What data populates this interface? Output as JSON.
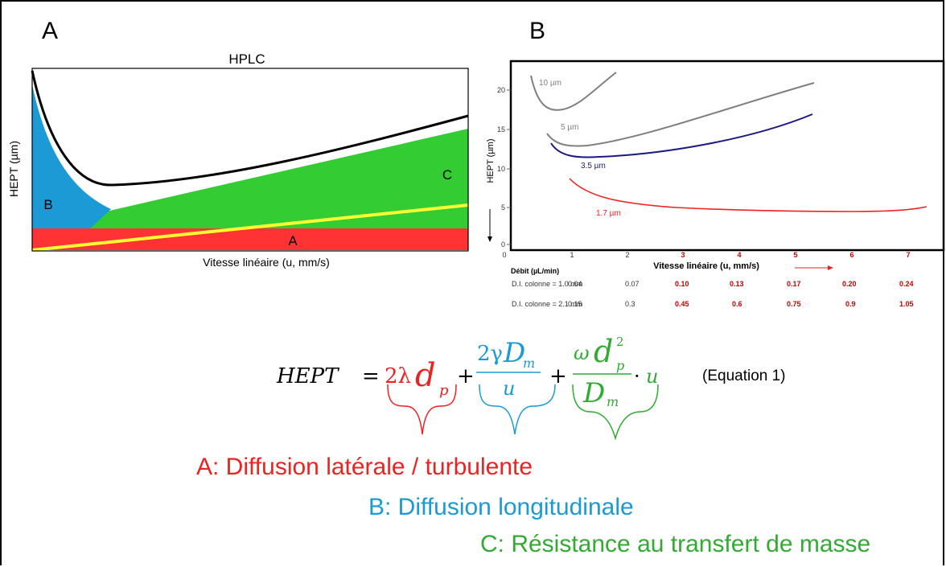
{
  "panelA": {
    "letter": "A",
    "title": "HPLC",
    "ylabel": "HEPT (µm)",
    "xlabel": "Vitesse linéaire (u, mm/s)",
    "region_labels": {
      "A": "A",
      "B": "B",
      "C": "C"
    },
    "colors": {
      "A": "#ff3333",
      "B": "#1b9ad6",
      "C": "#33cc33",
      "curve": "#000000",
      "line": "#ffff33"
    }
  },
  "panelB": {
    "letter": "B",
    "ylabel": "HEPT (µm)",
    "xlabel": "Vitesse linéaire (u, mm/s)",
    "y_ticks": [
      "0",
      "5",
      "10",
      "15",
      "20"
    ],
    "x_ticks": [
      "0",
      "1",
      "2",
      "3",
      "4",
      "5",
      "6",
      "7"
    ],
    "series": [
      {
        "name": "10 µm",
        "color": "#808080"
      },
      {
        "name": "5 µm",
        "color": "#808080"
      },
      {
        "name": "3.5 µm",
        "color": "#1a1a80"
      },
      {
        "name": "1.7 µm",
        "color": "#ee2222"
      }
    ],
    "table": {
      "header": "Débit (µL/min)",
      "rows": [
        {
          "label": "D.I. colonne = 1.0 mm",
          "values": [
            "0.04",
            "0.07",
            "0.10",
            "0.13",
            "0.17",
            "0.20",
            "0.24"
          ]
        },
        {
          "label": "D.I. colonne = 2.1 mm",
          "values": [
            "0.15",
            "0.3",
            "0.45",
            "0.6",
            "0.75",
            "0.9",
            "1.05"
          ]
        }
      ]
    }
  },
  "equation": {
    "label": "(Equation 1)",
    "lhs": "HEPT",
    "term1": {
      "coef": "2λ",
      "var": "d",
      "sub": "p"
    },
    "term2": {
      "num_coef": "2γ",
      "num_var": "D",
      "num_sub": "m",
      "den": "u"
    },
    "term3": {
      "num_coef": "ω",
      "num_var": "d",
      "num_sup": "2",
      "num_sub": "p",
      "den_var": "D",
      "den_sub": "m",
      "mult": "u"
    }
  },
  "legend": {
    "A": "A: Diffusion latérale / turbulente",
    "B": "B: Diffusion longitudinale",
    "C": "C: Résistance au transfert de masse"
  }
}
